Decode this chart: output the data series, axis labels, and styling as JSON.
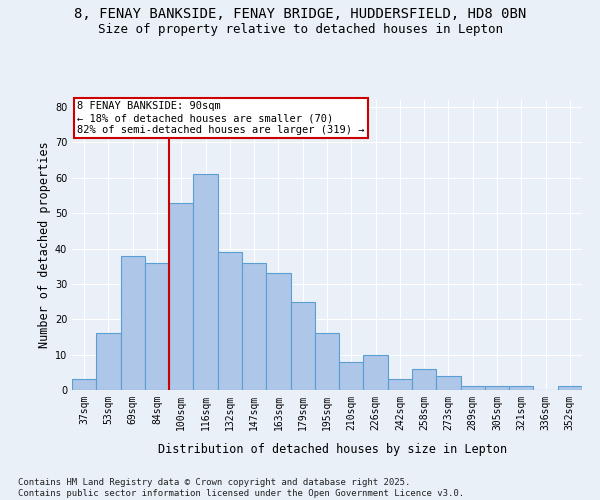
{
  "title1": "8, FENAY BANKSIDE, FENAY BRIDGE, HUDDERSFIELD, HD8 0BN",
  "title2": "Size of property relative to detached houses in Lepton",
  "xlabel": "Distribution of detached houses by size in Lepton",
  "ylabel": "Number of detached properties",
  "categories": [
    "37sqm",
    "53sqm",
    "69sqm",
    "84sqm",
    "100sqm",
    "116sqm",
    "132sqm",
    "147sqm",
    "163sqm",
    "179sqm",
    "195sqm",
    "210sqm",
    "226sqm",
    "242sqm",
    "258sqm",
    "273sqm",
    "289sqm",
    "305sqm",
    "321sqm",
    "336sqm",
    "352sqm"
  ],
  "values": [
    3,
    16,
    38,
    36,
    53,
    61,
    39,
    36,
    33,
    25,
    16,
    8,
    10,
    3,
    6,
    4,
    1,
    1,
    1,
    0,
    1
  ],
  "bar_color": "#aec6e8",
  "bar_edge_color": "#5a9fd4",
  "bar_linewidth": 0.8,
  "vline_color": "#cc0000",
  "annotation_line1": "8 FENAY BANKSIDE: 90sqm",
  "annotation_line2": "← 18% of detached houses are smaller (70)",
  "annotation_line3": "82% of semi-detached houses are larger (319) →",
  "annotation_box_color": "#cc0000",
  "ylim": [
    0,
    82
  ],
  "yticks": [
    0,
    10,
    20,
    30,
    40,
    50,
    60,
    70,
    80
  ],
  "footnote": "Contains HM Land Registry data © Crown copyright and database right 2025.\nContains public sector information licensed under the Open Government Licence v3.0.",
  "bg_color": "#eaf0f8",
  "plot_bg_color": "#eaf0f8",
  "grid_color": "#ffffff",
  "title_fontsize": 10,
  "subtitle_fontsize": 9,
  "axis_label_fontsize": 8.5,
  "tick_fontsize": 7,
  "annotation_fontsize": 7.5,
  "footnote_fontsize": 6.5
}
